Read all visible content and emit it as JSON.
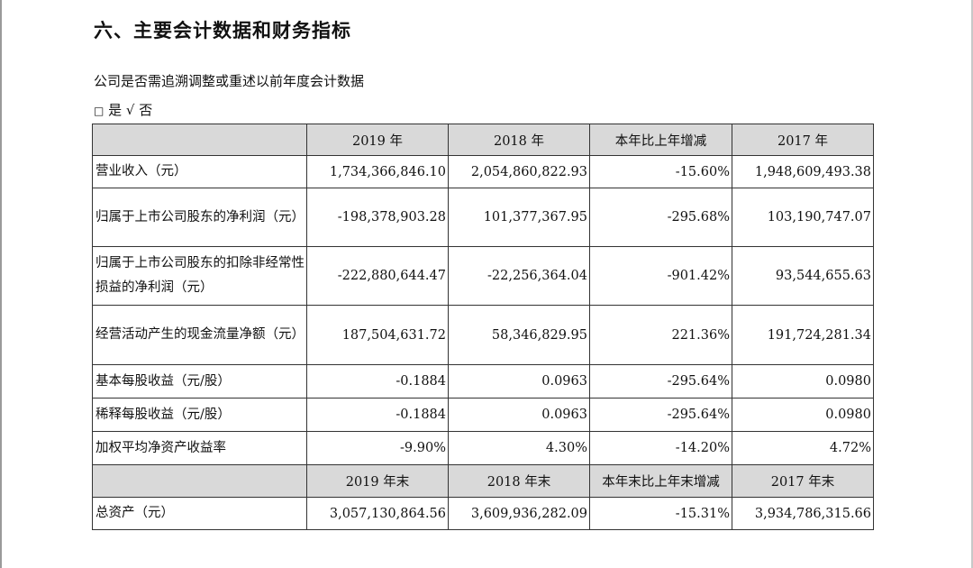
{
  "heading": "六、主要会计数据和财务指标",
  "question": "公司是否需追溯调整或重述以前年度会计数据",
  "answer": {
    "box_symbol": "□",
    "yes_label": "是",
    "check_symbol": "√",
    "no_label": "否"
  },
  "table": {
    "header1": [
      "2019 年",
      "2018 年",
      "本年比上年增减",
      "2017 年"
    ],
    "rows1": [
      {
        "label": "营业收入（元）",
        "values": [
          "1,734,366,846.10",
          "2,054,860,822.93",
          "-15.60%",
          "1,948,609,493.38"
        ]
      },
      {
        "label": "归属于上市公司股东的净利润（元）",
        "values": [
          "-198,378,903.28",
          "101,377,367.95",
          "-295.68%",
          "103,190,747.07"
        ]
      },
      {
        "label": "归属于上市公司股东的扣除非经常性损益的净利润（元）",
        "values": [
          "-222,880,644.47",
          "-22,256,364.04",
          "-901.42%",
          "93,544,655.63"
        ]
      },
      {
        "label": "经营活动产生的现金流量净额（元）",
        "values": [
          "187,504,631.72",
          "58,346,829.95",
          "221.36%",
          "191,724,281.34"
        ]
      },
      {
        "label": "基本每股收益（元/股）",
        "values": [
          "-0.1884",
          "0.0963",
          "-295.64%",
          "0.0980"
        ]
      },
      {
        "label": "稀释每股收益（元/股）",
        "values": [
          "-0.1884",
          "0.0963",
          "-295.64%",
          "0.0980"
        ]
      },
      {
        "label": "加权平均净资产收益率",
        "values": [
          "-9.90%",
          "4.30%",
          "-14.20%",
          "4.72%"
        ]
      }
    ],
    "header2": [
      "2019 年末",
      "2018 年末",
      "本年末比上年末增减",
      "2017 年末"
    ],
    "rows2": [
      {
        "label": "总资产（元）",
        "values": [
          "3,057,130,864.56",
          "3,609,936,282.09",
          "-15.31%",
          "3,934,786,315.66"
        ]
      }
    ]
  }
}
